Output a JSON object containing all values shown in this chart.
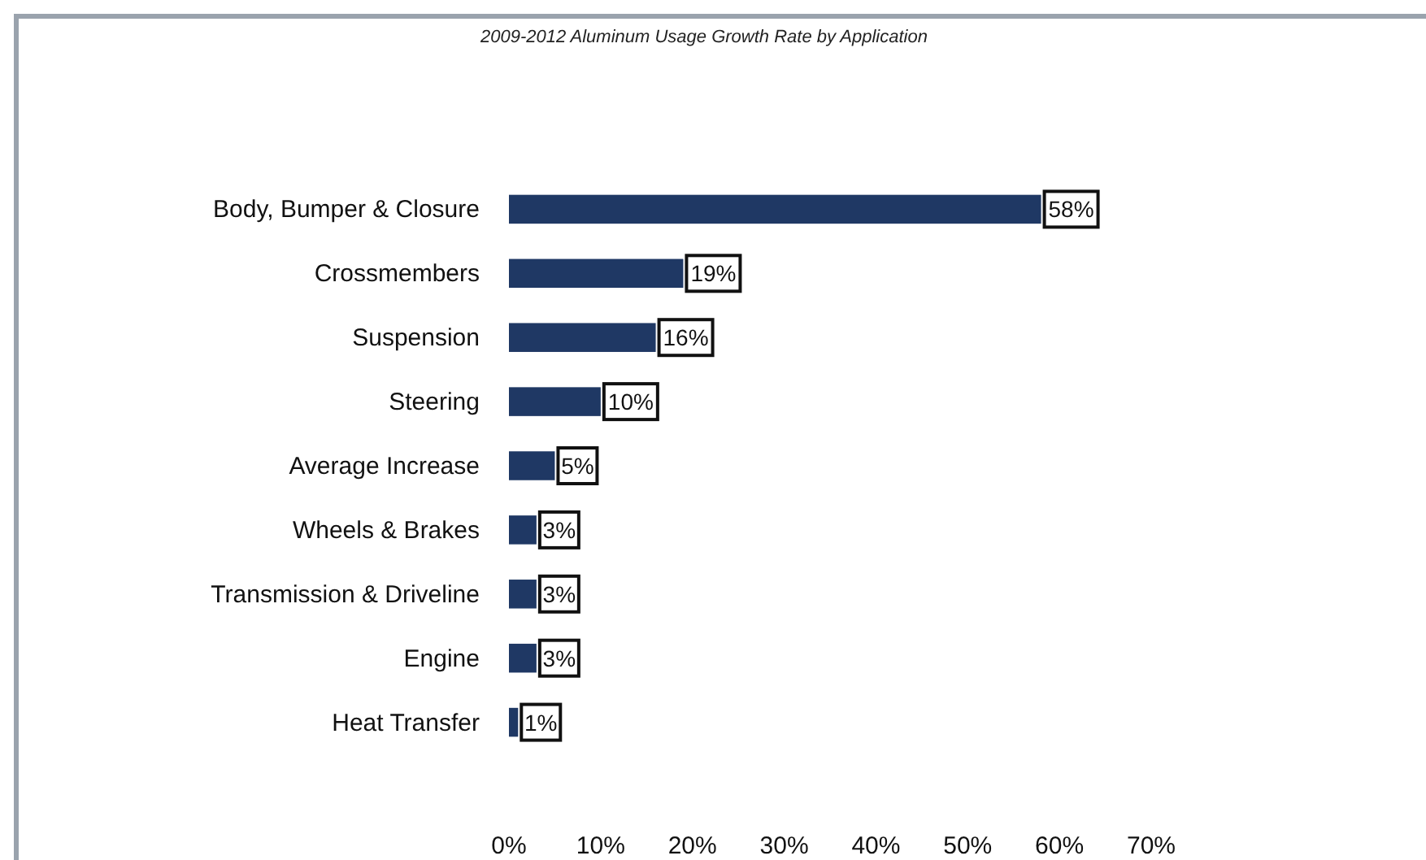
{
  "chart_data": {
    "type": "bar",
    "orientation": "horizontal",
    "title": "2009-2012  Aluminum Usage Growth Rate by Application",
    "categories": [
      "Body, Bumper & Closure",
      "Crossmembers",
      "Suspension",
      "Steering",
      "Average Increase",
      "Wheels & Brakes",
      "Transmission & Driveline",
      "Engine",
      "Heat Transfer"
    ],
    "values": [
      58,
      19,
      16,
      10,
      5,
      3,
      3,
      3,
      1
    ],
    "value_labels": [
      "58%",
      "19%",
      "16%",
      "10%",
      "5%",
      "3%",
      "3%",
      "3%",
      "1%"
    ],
    "color": "#1f3864",
    "xlim": [
      0,
      70
    ],
    "xticks": [
      {
        "value": 0,
        "label": "0%"
      },
      {
        "value": 10,
        "label": "10%"
      },
      {
        "value": 20,
        "label": "20%"
      },
      {
        "value": 30,
        "label": "30%"
      },
      {
        "value": 40,
        "label": "40%"
      },
      {
        "value": 50,
        "label": "50%"
      },
      {
        "value": 60,
        "label": "60%"
      },
      {
        "value": 70,
        "label": "70%"
      }
    ],
    "grid": false
  }
}
